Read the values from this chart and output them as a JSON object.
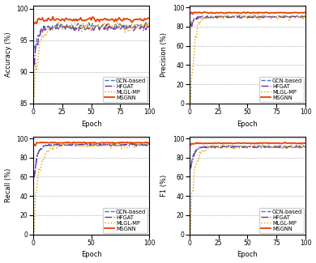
{
  "epochs": 100,
  "legend_labels": [
    "GCN-based",
    "HFGAT",
    "MLGL-MP",
    "MSGNN"
  ],
  "colors": [
    "#4472C4",
    "#7B2D8B",
    "#DAA000",
    "#E84000"
  ],
  "linestyles": [
    "--",
    "-.",
    ":",
    "-"
  ],
  "linewidths": [
    1.0,
    1.0,
    1.0,
    1.3
  ],
  "subplots": [
    {
      "ylabel": "Accuracy (%)",
      "xlabel": "Epoch",
      "ylim": [
        85,
        100.5
      ],
      "yticks": [
        85,
        90,
        95,
        100
      ],
      "grid_yticks": [
        90,
        95,
        100
      ],
      "xticks": [
        0,
        25,
        50,
        75,
        100
      ],
      "series": [
        {
          "start": 90.5,
          "converge": 97.2,
          "k": 0.35,
          "noise": 0.25,
          "early_noise": 1.0
        },
        {
          "start": 90.0,
          "converge": 97.0,
          "k": 0.32,
          "noise": 0.25,
          "early_noise": 1.0
        },
        {
          "start": 86.5,
          "converge": 97.2,
          "k": 0.22,
          "noise": 0.4,
          "early_noise": 1.5
        },
        {
          "start": 96.5,
          "converge": 98.3,
          "k": 0.8,
          "noise": 0.15,
          "early_noise": 0.4
        }
      ]
    },
    {
      "ylabel": "Precision (%)",
      "xlabel": "Epoch",
      "ylim": [
        0,
        102
      ],
      "yticks": [
        0,
        20,
        40,
        60,
        80,
        100
      ],
      "grid_yticks": [
        20,
        40,
        60,
        80,
        100
      ],
      "xticks": [
        0,
        25,
        50,
        75,
        100
      ],
      "series": [
        {
          "start": 77.0,
          "converge": 90.5,
          "k": 0.4,
          "noise": 0.5,
          "early_noise": 2.0
        },
        {
          "start": 75.0,
          "converge": 90.0,
          "k": 0.38,
          "noise": 0.5,
          "early_noise": 2.0
        },
        {
          "start": 1.0,
          "converge": 90.5,
          "k": 0.28,
          "noise": 1.5,
          "early_noise": 15.0,
          "spike_down": true,
          "spike_epoch": 1,
          "spike_val": 0.5
        },
        {
          "start": 91.0,
          "converge": 94.5,
          "k": 0.9,
          "noise": 0.3,
          "early_noise": 1.0
        }
      ]
    },
    {
      "ylabel": "Recall (%)",
      "xlabel": "Epoch",
      "ylim": [
        0,
        102
      ],
      "yticks": [
        0,
        20,
        40,
        60,
        80,
        100
      ],
      "grid_yticks": [
        20,
        40,
        60,
        80,
        100
      ],
      "xticks": [
        0,
        50,
        100
      ],
      "series": [
        {
          "start": 50.0,
          "converge": 93.5,
          "k": 0.38,
          "noise": 0.6,
          "early_noise": 3.0
        },
        {
          "start": 47.0,
          "converge": 93.0,
          "k": 0.36,
          "noise": 0.6,
          "early_noise": 3.0
        },
        {
          "start": 0.5,
          "converge": 93.0,
          "k": 0.22,
          "noise": 1.5,
          "early_noise": 10.0,
          "spike_down": true,
          "spike_epoch": 1,
          "spike_val": 0.1
        },
        {
          "start": 91.0,
          "converge": 95.5,
          "k": 0.9,
          "noise": 0.3,
          "early_noise": 0.8
        }
      ]
    },
    {
      "ylabel": "F1 (%)",
      "xlabel": "Epoch",
      "ylim": [
        0,
        102
      ],
      "yticks": [
        0,
        20,
        40,
        60,
        80,
        100
      ],
      "grid_yticks": [
        20,
        40,
        60,
        80,
        100
      ],
      "xticks": [
        0,
        25,
        50,
        75,
        100
      ],
      "series": [
        {
          "start": 60.0,
          "converge": 91.5,
          "k": 0.38,
          "noise": 0.5,
          "early_noise": 2.5
        },
        {
          "start": 57.0,
          "converge": 91.0,
          "k": 0.36,
          "noise": 0.5,
          "early_noise": 2.5
        },
        {
          "start": 1.0,
          "converge": 91.5,
          "k": 0.25,
          "noise": 1.2,
          "early_noise": 8.0,
          "spike_down": true,
          "spike_epoch": 1,
          "spike_val": 0.3
        },
        {
          "start": 90.0,
          "converge": 95.0,
          "k": 0.9,
          "noise": 0.25,
          "early_noise": 0.8
        }
      ]
    }
  ]
}
